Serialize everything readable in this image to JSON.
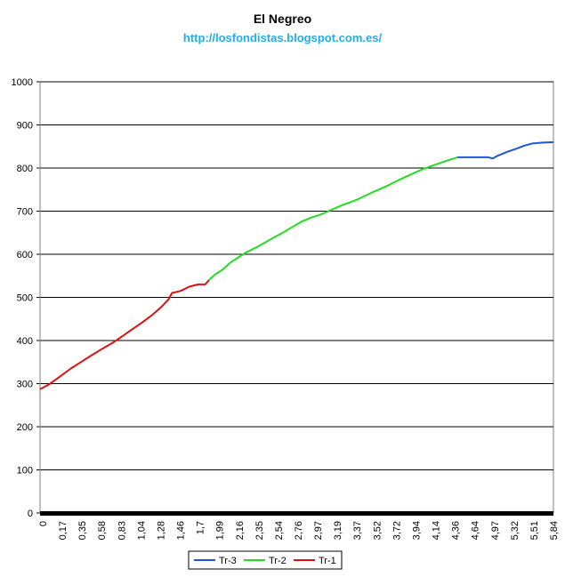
{
  "chart_data": {
    "type": "line",
    "title": "El Negreo",
    "subtitle": "http://losfondistas.blogspot.com.es/",
    "xlabel": "",
    "ylabel": "",
    "ylim": [
      0,
      1000
    ],
    "yticks": [
      0,
      100,
      200,
      300,
      400,
      500,
      600,
      700,
      800,
      900,
      1000
    ],
    "x_tick_labels": [
      "0",
      "0,17",
      "0,35",
      "0,58",
      "0,83",
      "1,04",
      "1,28",
      "1,46",
      "1,7",
      "1,99",
      "2,16",
      "2,35",
      "2,54",
      "2,76",
      "2,97",
      "3,19",
      "3,37",
      "3,52",
      "3,72",
      "3,94",
      "4,14",
      "4,36",
      "4,64",
      "4,97",
      "5,32",
      "5,51",
      "5,84"
    ],
    "grid": "horizontal",
    "legend_position": "bottom",
    "legend": [
      "Tr-3",
      "Tr-2",
      "Tr-1"
    ],
    "series": [
      {
        "name": "Tr-1",
        "color": "#e01010",
        "x": [
          0,
          0.1,
          0.17,
          0.25,
          0.35,
          0.45,
          0.58,
          0.7,
          0.83,
          0.95,
          1.04,
          1.15,
          1.28,
          1.38,
          1.46,
          1.5,
          1.6,
          1.7,
          1.8,
          1.88,
          1.92
        ],
        "y": [
          287,
          298,
          308,
          320,
          335,
          348,
          365,
          380,
          395,
          412,
          425,
          440,
          460,
          478,
          495,
          510,
          515,
          525,
          530,
          530,
          540
        ]
      },
      {
        "name": "Tr-2",
        "color": "#22dd22",
        "x": [
          1.92,
          1.99,
          2.08,
          2.16,
          2.25,
          2.35,
          2.45,
          2.54,
          2.65,
          2.76,
          2.86,
          2.97,
          3.08,
          3.19,
          3.28,
          3.37,
          3.45,
          3.52,
          3.62,
          3.72,
          3.83,
          3.94,
          4.04,
          4.14,
          4.25,
          4.36,
          4.5,
          4.64,
          4.75
        ],
        "y": [
          540,
          553,
          565,
          580,
          592,
          605,
          615,
          625,
          638,
          650,
          662,
          675,
          685,
          692,
          700,
          708,
          715,
          720,
          728,
          738,
          748,
          758,
          768,
          778,
          788,
          798,
          808,
          818,
          825
        ]
      },
      {
        "name": "Tr-3",
        "color": "#2255dd",
        "x": [
          4.75,
          4.85,
          4.97,
          5.1,
          5.15,
          5.2,
          5.32,
          5.42,
          5.51,
          5.6,
          5.72,
          5.84
        ],
        "y": [
          825,
          825,
          825,
          825,
          822,
          828,
          838,
          845,
          852,
          857,
          859,
          860
        ]
      }
    ]
  }
}
